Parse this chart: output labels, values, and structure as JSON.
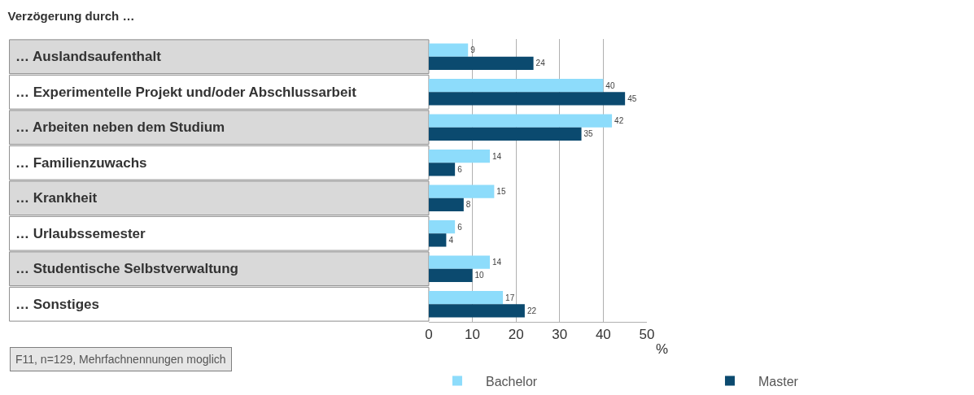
{
  "chart_data": {
    "type": "bar",
    "orientation": "horizontal",
    "title": "Verzögerung durch …",
    "categories": [
      "… Auslandsaufenthalt",
      "… Experimentelle Projekt und/oder Abschlussarbeit",
      "… Arbeiten neben dem Studium",
      "… Familienzuwachs",
      "… Krankheit",
      "… Urlaubssemester",
      "… Studentische Selbstverwaltung",
      "… Sonstiges"
    ],
    "series": [
      {
        "name": "Bachelor",
        "color": "#8ddcfb",
        "values": [
          9,
          40,
          42,
          14,
          15,
          6,
          14,
          17
        ]
      },
      {
        "name": "Master",
        "color": "#0b4a6f",
        "values": [
          24,
          45,
          35,
          6,
          8,
          4,
          10,
          22
        ]
      }
    ],
    "xlim": [
      0,
      50
    ],
    "xticks": [
      0,
      10,
      20,
      30,
      40,
      50
    ],
    "xlabel": "%",
    "grid": "x",
    "legend": "bottom",
    "data_labels": true,
    "annotations": [
      "F11, n=129, Mehrfachnennungen moglich"
    ]
  }
}
